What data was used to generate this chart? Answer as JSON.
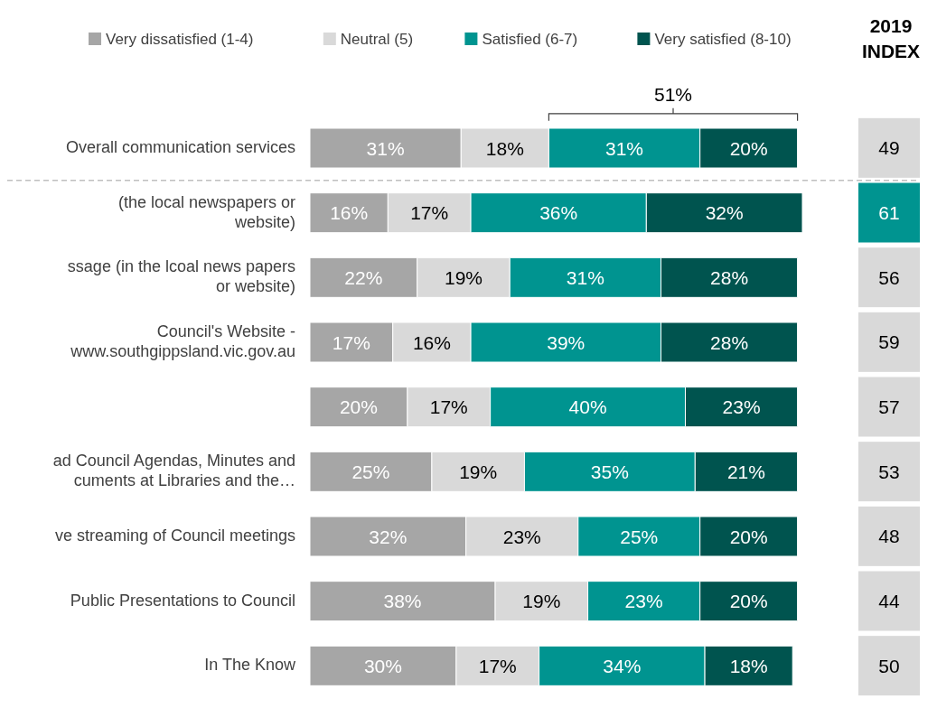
{
  "chart_data": {
    "type": "bar",
    "orientation": "horizontal",
    "stacked": true,
    "legend": "top",
    "tick_labels": "y",
    "categories": [
      "Overall communication services",
      "(the local newspapers or website)",
      "ssage (in the lcoal news papers or website)",
      "Council's Website - www.southgippsland.vic.gov.au",
      null,
      "ad Council Agendas, Minutes and cuments at Libraries and the…",
      "ve streaming of Council meetings",
      "Public Presentations to Council",
      "In The Know"
    ],
    "series": [
      {
        "name": "Very dissatisfied (1-4)",
        "color": "#a6a6a6",
        "values": [
          31,
          16,
          22,
          17,
          20,
          25,
          32,
          38,
          30
        ],
        "value_labels": [
          "31%",
          "16%",
          "22%",
          "17%",
          "20%",
          "25%",
          "32%",
          "38%",
          "30%"
        ]
      },
      {
        "name": "Neutral (5)",
        "color": "#d9d9d9",
        "values": [
          18,
          17,
          19,
          16,
          17,
          19,
          23,
          19,
          17
        ],
        "value_labels": [
          "18%",
          "17%",
          "19%",
          "16%",
          "17%",
          "19%",
          "23%",
          "19%",
          "17%"
        ]
      },
      {
        "name": "Satisfied (6-7)",
        "color": "#009490",
        "values": [
          31,
          36,
          31,
          39,
          40,
          35,
          25,
          23,
          34
        ],
        "value_labels": [
          "31%",
          "36%",
          "31%",
          "39%",
          "40%",
          "35%",
          "25%",
          "23%",
          "34%"
        ]
      },
      {
        "name": "Very satisfied (8-10)",
        "color": "#00544f",
        "values": [
          20,
          32,
          28,
          28,
          23,
          21,
          20,
          20,
          18
        ],
        "value_labels": [
          "20%",
          "32%",
          "28%",
          "28%",
          "23%",
          "21%",
          "20%",
          "20%",
          "18%"
        ]
      }
    ],
    "annotations": [
      "51%",
      "2019 INDEX",
      "49",
      "61",
      "56",
      "59",
      "57",
      "53",
      "48",
      "44",
      "50"
    ]
  }
}
